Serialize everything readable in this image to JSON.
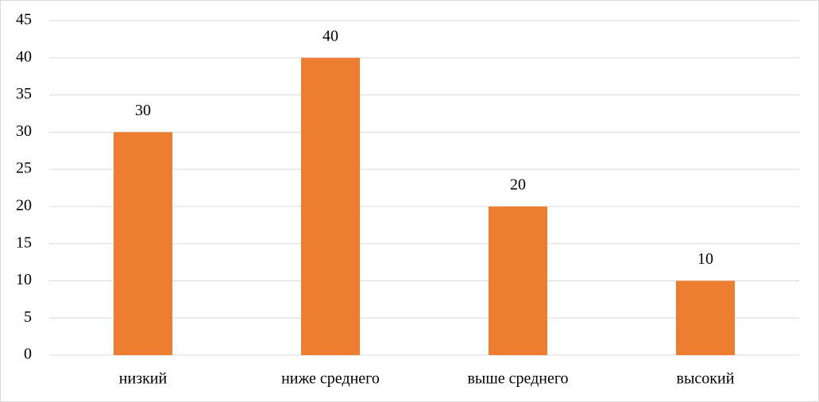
{
  "chart_data": {
    "type": "bar",
    "categories": [
      "низкий",
      "ниже среднего",
      "выше среднего",
      "высокий"
    ],
    "values": [
      30,
      40,
      20,
      10
    ],
    "color": "#ed7d31",
    "ylim": [
      0,
      45
    ],
    "yticks": [
      0,
      5,
      10,
      15,
      20,
      25,
      30,
      35,
      40,
      45
    ],
    "grid": true
  }
}
